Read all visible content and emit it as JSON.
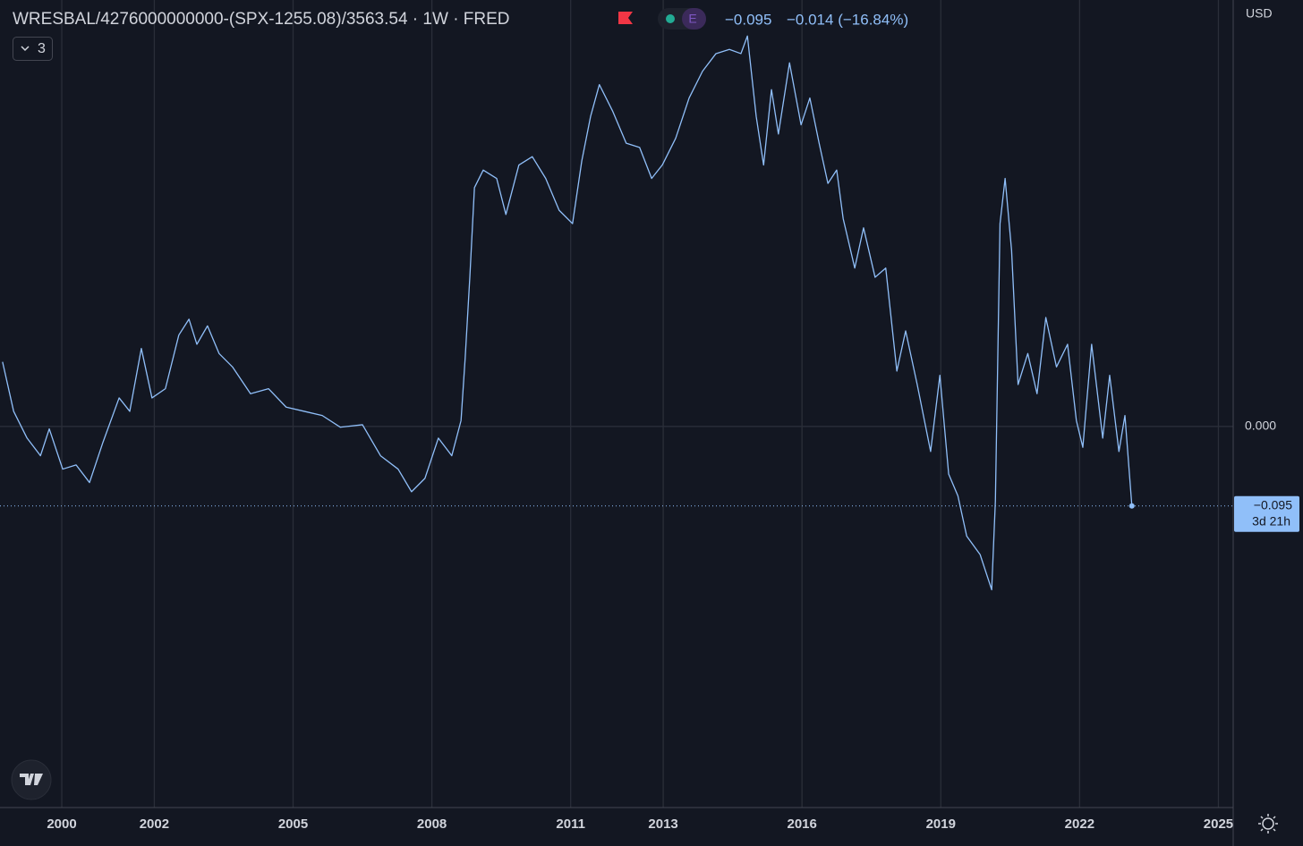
{
  "chart_data": {
    "type": "line",
    "title": "WRESBAL/4276000000000-(SPX-1255.08)/3563.54 · 1W · FRED",
    "header_value": "−0.095",
    "header_change": "−0.014 (−16.84%)",
    "badge": "E",
    "indicator_count": "3",
    "currency": "USD",
    "color": "#90bff9",
    "grid": true,
    "x": [
      1998.72,
      1998.96,
      1999.25,
      1999.54,
      1999.73,
      2000.02,
      2000.31,
      2000.6,
      2000.89,
      2001.24,
      2001.47,
      2001.72,
      2001.95,
      2002.24,
      2002.53,
      2002.75,
      2002.92,
      2003.15,
      2003.4,
      2003.69,
      2004.08,
      2004.47,
      2004.85,
      2005.24,
      2005.63,
      2006.02,
      2006.5,
      2006.89,
      2007.27,
      2007.56,
      2007.85,
      2008.14,
      2008.43,
      2008.63,
      2008.72,
      2008.82,
      2008.92,
      2009.11,
      2009.4,
      2009.6,
      2009.88,
      2010.17,
      2010.46,
      2010.75,
      2011.04,
      2011.24,
      2011.43,
      2011.62,
      2011.91,
      2012.2,
      2012.49,
      2012.75,
      2012.98,
      2013.27,
      2013.56,
      2013.85,
      2014.14,
      2014.43,
      2014.68,
      2014.82,
      2015.01,
      2015.17,
      2015.34,
      2015.49,
      2015.73,
      2015.98,
      2016.17,
      2016.37,
      2016.56,
      2016.75,
      2016.89,
      2017.14,
      2017.33,
      2017.58,
      2017.81,
      2018.05,
      2018.24,
      2018.49,
      2018.78,
      2018.98,
      2019.17,
      2019.37,
      2019.56,
      2019.85,
      2020.1,
      2020.18,
      2020.28,
      2020.39,
      2020.53,
      2020.67,
      2020.88,
      2021.08,
      2021.27,
      2021.5,
      2021.74,
      2021.93,
      2022.07,
      2022.26,
      2022.5,
      2022.65,
      2022.85,
      2022.98,
      2023.13
    ],
    "values": [
      0.077,
      0.018,
      -0.014,
      -0.035,
      -0.003,
      -0.051,
      -0.046,
      -0.067,
      -0.019,
      0.034,
      0.018,
      0.093,
      0.034,
      0.045,
      0.109,
      0.128,
      0.098,
      0.12,
      0.087,
      0.071,
      0.039,
      0.045,
      0.023,
      0.018,
      0.013,
      -0.001,
      0.002,
      -0.035,
      -0.051,
      -0.078,
      -0.062,
      -0.014,
      -0.035,
      0.007,
      0.082,
      0.178,
      0.285,
      0.306,
      0.296,
      0.253,
      0.312,
      0.322,
      0.296,
      0.258,
      0.242,
      0.317,
      0.37,
      0.408,
      0.376,
      0.338,
      0.333,
      0.296,
      0.312,
      0.344,
      0.392,
      0.424,
      0.445,
      0.45,
      0.445,
      0.466,
      0.37,
      0.312,
      0.402,
      0.349,
      0.434,
      0.36,
      0.392,
      0.338,
      0.29,
      0.306,
      0.248,
      0.189,
      0.237,
      0.178,
      0.189,
      0.066,
      0.114,
      0.05,
      -0.03,
      0.061,
      -0.057,
      -0.083,
      -0.131,
      -0.153,
      -0.195,
      -0.089,
      0.242,
      0.296,
      0.21,
      0.05,
      0.087,
      0.039,
      0.13,
      0.071,
      0.098,
      0.007,
      -0.025,
      0.098,
      -0.014,
      0.061,
      -0.03,
      0.013,
      -0.095
    ],
    "price_tag": {
      "value": -0.095,
      "label": "−0.095",
      "countdown": "3d 21h"
    },
    "xlim": [
      1998.665,
      2025.32
    ],
    "ylim": [
      -0.455,
      0.509
    ],
    "xticks": [
      2000,
      2002,
      2005,
      2008,
      2011,
      2013,
      2016,
      2019,
      2022,
      2025
    ],
    "yticks": [
      {
        "value": 0,
        "label": "0.000"
      }
    ]
  }
}
